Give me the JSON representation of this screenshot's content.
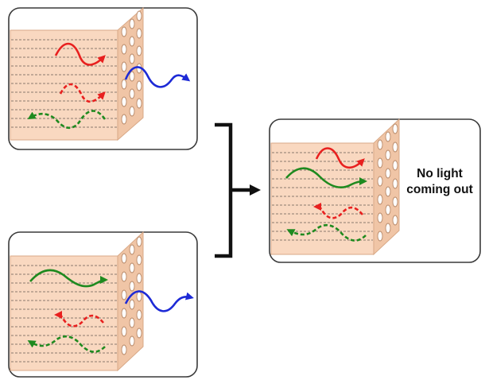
{
  "caption": {
    "line1": "No light",
    "line2": "coming out"
  },
  "colors": {
    "crystal_face": "#f9d8c0",
    "crystal_edge": "#f0c5a6",
    "panel_border": "#3a3a3a",
    "red_wave": "#e8201f",
    "green_wave": "#1f8a1f",
    "blue_wave": "#1d2ad6",
    "bracket": "#111111"
  },
  "panels": [
    {
      "id": "top-left",
      "waves": [
        {
          "color": "red",
          "style": "solid",
          "direction": "right"
        },
        {
          "color": "red",
          "style": "dashed",
          "direction": "right"
        },
        {
          "color": "green",
          "style": "dashed",
          "direction": "left"
        },
        {
          "color": "blue",
          "style": "solid",
          "direction": "right",
          "exits": true
        }
      ]
    },
    {
      "id": "bottom-left",
      "waves": [
        {
          "color": "green",
          "style": "solid",
          "direction": "right"
        },
        {
          "color": "red",
          "style": "dashed",
          "direction": "left"
        },
        {
          "color": "green",
          "style": "dashed",
          "direction": "left"
        },
        {
          "color": "blue",
          "style": "solid",
          "direction": "right",
          "exits": true
        }
      ]
    },
    {
      "id": "right",
      "waves": [
        {
          "color": "red",
          "style": "solid",
          "direction": "right"
        },
        {
          "color": "green",
          "style": "solid",
          "direction": "right"
        },
        {
          "color": "red",
          "style": "dashed",
          "direction": "left"
        },
        {
          "color": "green",
          "style": "dashed",
          "direction": "left"
        }
      ]
    }
  ],
  "icons": {
    "combine": "bracket-arrow-icon"
  }
}
